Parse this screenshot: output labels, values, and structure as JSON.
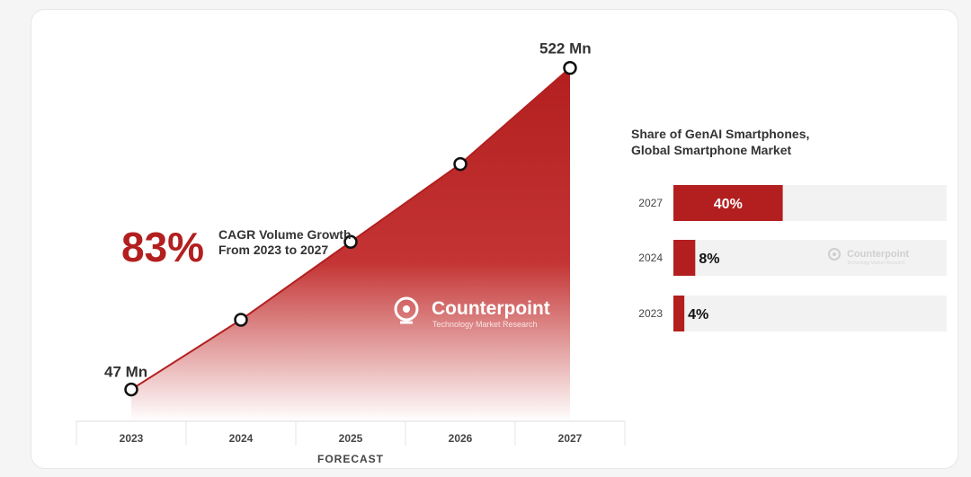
{
  "chart_data": [
    {
      "type": "area",
      "x": [
        "2023",
        "2024",
        "2025",
        "2026",
        "2027"
      ],
      "values": [
        47,
        150,
        265,
        380,
        522
      ],
      "ylim": [
        0,
        560
      ],
      "unit": "Mn",
      "point_labels": {
        "first": "47 Mn",
        "last": "522 Mn"
      },
      "xlabel": "FORECAST",
      "annotation": {
        "value": "83%",
        "line1": "CAGR Volume Growth",
        "line2": "From 2023 to 2027"
      },
      "fill_color": "#b31f1f"
    },
    {
      "type": "bar",
      "title_line1": "Share of GenAI Smartphones,",
      "title_line2": "Global Smartphone Market",
      "categories": [
        "2027",
        "2024",
        "2023"
      ],
      "values": [
        40,
        8,
        4
      ],
      "labels": [
        "40%",
        "8%",
        "4%"
      ],
      "xlim": [
        0,
        100
      ],
      "bar_color": "#b31f1f",
      "track_color": "#f2f2f2"
    }
  ],
  "watermark": {
    "name": "Counterpoint",
    "tagline": "Technology Market Research"
  }
}
